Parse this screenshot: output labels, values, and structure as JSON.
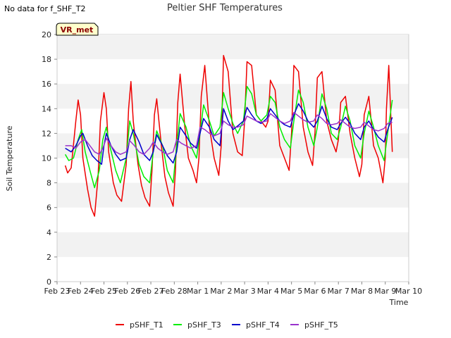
{
  "note": "No data for f_SHF_T2",
  "badge": "VR_met",
  "chart_data": {
    "type": "line",
    "title": "Peltier SHF Temperatures",
    "xlabel": "Time",
    "ylabel": "Soil Temperature",
    "ylim": [
      0,
      20
    ],
    "yticks": [
      0,
      2,
      4,
      6,
      8,
      10,
      12,
      14,
      16,
      18,
      20
    ],
    "xlim": [
      0,
      15
    ],
    "xtick_labels": [
      "Feb 23",
      "Feb 24",
      "Feb 25",
      "Feb 26",
      "Feb 27",
      "Feb 28",
      "Mar 1",
      "Mar 2",
      "Mar 3",
      "Mar 4",
      "Mar 5",
      "Mar 6",
      "Mar 7",
      "Mar 8",
      "Mar 9",
      "Mar 10"
    ],
    "x_values_note": "x in days since Feb 23",
    "grid": true,
    "legend_position": "bottom",
    "series": [
      {
        "name": "pSHF_T1",
        "color": "#ee0000",
        "x": [
          0.35,
          0.45,
          0.6,
          0.8,
          0.9,
          1.0,
          1.1,
          1.3,
          1.45,
          1.6,
          1.75,
          1.85,
          2.0,
          2.1,
          2.2,
          2.4,
          2.55,
          2.75,
          2.95,
          3.05,
          3.15,
          3.25,
          3.45,
          3.6,
          3.75,
          3.95,
          4.05,
          4.15,
          4.25,
          4.45,
          4.6,
          4.75,
          4.95,
          5.05,
          5.15,
          5.25,
          5.45,
          5.6,
          5.8,
          5.95,
          6.05,
          6.15,
          6.3,
          6.5,
          6.7,
          6.9,
          7.0,
          7.1,
          7.3,
          7.5,
          7.7,
          7.9,
          8.0,
          8.1,
          8.3,
          8.5,
          8.7,
          8.9,
          9.0,
          9.1,
          9.3,
          9.5,
          9.7,
          9.9,
          10.0,
          10.1,
          10.3,
          10.5,
          10.7,
          10.9,
          11.0,
          11.1,
          11.3,
          11.5,
          11.7,
          11.9,
          12.0,
          12.1,
          12.3,
          12.5,
          12.7,
          12.9,
          13.0,
          13.1,
          13.3,
          13.5,
          13.7,
          13.9,
          14.0,
          14.05,
          14.15,
          14.3
        ],
        "y": [
          9.4,
          8.8,
          9.2,
          13.0,
          14.7,
          13.5,
          10.0,
          7.5,
          6.0,
          5.3,
          8.5,
          13.0,
          15.3,
          14.0,
          10.5,
          8.0,
          7.0,
          6.5,
          9.5,
          14.0,
          16.2,
          13.0,
          9.5,
          7.8,
          6.8,
          6.1,
          9.0,
          13.5,
          14.8,
          11.0,
          8.5,
          7.2,
          6.1,
          9.0,
          14.5,
          16.8,
          12.5,
          10.0,
          9.0,
          8.0,
          10.0,
          15.0,
          17.5,
          12.5,
          10.0,
          8.6,
          11.0,
          18.3,
          17.0,
          12.0,
          10.5,
          10.2,
          13.0,
          17.8,
          17.5,
          13.5,
          13.0,
          12.5,
          13.0,
          16.3,
          15.5,
          11.0,
          10.0,
          9.0,
          12.0,
          17.5,
          17.0,
          12.5,
          10.5,
          9.4,
          12.0,
          16.5,
          17.0,
          13.0,
          11.5,
          10.5,
          11.5,
          14.5,
          15.0,
          12.0,
          10.0,
          8.5,
          9.5,
          13.5,
          15.0,
          11.0,
          10.0,
          8.0,
          10.0,
          14.0,
          17.5,
          10.5
        ]
      },
      {
        "name": "pSHF_T3",
        "color": "#00ee00",
        "x": [
          0.35,
          0.5,
          0.7,
          0.9,
          1.05,
          1.2,
          1.4,
          1.6,
          1.8,
          1.95,
          2.1,
          2.25,
          2.5,
          2.7,
          2.95,
          3.1,
          3.25,
          3.5,
          3.7,
          3.95,
          4.1,
          4.25,
          4.5,
          4.7,
          4.95,
          5.1,
          5.25,
          5.5,
          5.7,
          5.95,
          6.1,
          6.25,
          6.5,
          6.7,
          6.95,
          7.1,
          7.3,
          7.5,
          7.7,
          7.95,
          8.1,
          8.3,
          8.5,
          8.7,
          8.95,
          9.1,
          9.3,
          9.5,
          9.7,
          9.95,
          10.1,
          10.3,
          10.5,
          10.7,
          10.95,
          11.1,
          11.3,
          11.5,
          11.7,
          11.95,
          12.1,
          12.3,
          12.5,
          12.7,
          12.95,
          13.1,
          13.3,
          13.5,
          13.7,
          13.95,
          14.1,
          14.3
        ],
        "y": [
          10.3,
          9.8,
          10.0,
          11.5,
          12.3,
          10.5,
          9.0,
          7.6,
          9.0,
          11.5,
          12.5,
          11.0,
          9.0,
          8.0,
          10.0,
          13.0,
          12.0,
          9.5,
          8.5,
          8.0,
          10.5,
          12.2,
          11.0,
          9.0,
          8.0,
          11.0,
          13.6,
          12.5,
          11.0,
          10.0,
          12.0,
          14.3,
          13.0,
          11.8,
          12.5,
          15.3,
          14.0,
          12.8,
          12.0,
          13.0,
          15.8,
          15.2,
          13.5,
          13.0,
          13.5,
          15.0,
          14.5,
          12.5,
          11.5,
          10.8,
          13.0,
          15.5,
          14.5,
          12.5,
          11.0,
          12.5,
          15.2,
          14.0,
          12.0,
          11.5,
          12.5,
          14.2,
          13.0,
          11.0,
          10.0,
          12.0,
          13.8,
          12.5,
          11.0,
          9.8,
          12.0,
          14.7
        ]
      },
      {
        "name": "pSHF_T4",
        "color": "#0000cc",
        "x": [
          0.35,
          0.6,
          0.8,
          1.0,
          1.1,
          1.3,
          1.5,
          1.7,
          1.9,
          2.0,
          2.1,
          2.3,
          2.5,
          2.7,
          2.95,
          3.1,
          3.25,
          3.5,
          3.7,
          3.95,
          4.1,
          4.25,
          4.5,
          4.7,
          4.95,
          5.1,
          5.25,
          5.5,
          5.7,
          5.95,
          6.1,
          6.25,
          6.5,
          6.7,
          6.95,
          7.1,
          7.3,
          7.5,
          7.7,
          7.95,
          8.1,
          8.3,
          8.5,
          8.7,
          8.95,
          9.1,
          9.3,
          9.5,
          9.7,
          9.95,
          10.1,
          10.3,
          10.5,
          10.7,
          10.95,
          11.1,
          11.3,
          11.5,
          11.7,
          11.95,
          12.1,
          12.3,
          12.5,
          12.7,
          12.95,
          13.1,
          13.3,
          13.5,
          13.7,
          13.95,
          14.1,
          14.3
        ],
        "y": [
          10.8,
          10.5,
          11.0,
          11.8,
          12.0,
          11.0,
          10.2,
          9.8,
          9.5,
          11.0,
          12.0,
          11.0,
          10.3,
          9.8,
          10.0,
          11.5,
          12.3,
          11.3,
          10.3,
          9.8,
          10.5,
          11.9,
          11.0,
          10.2,
          9.6,
          10.5,
          12.5,
          11.8,
          11.2,
          10.8,
          12.0,
          13.2,
          12.5,
          11.5,
          11.0,
          14.0,
          13.0,
          12.3,
          12.6,
          13.0,
          14.1,
          13.5,
          13.0,
          12.8,
          13.2,
          14.0,
          13.5,
          13.0,
          12.7,
          12.5,
          13.5,
          14.4,
          13.8,
          13.0,
          12.5,
          13.0,
          14.2,
          13.2,
          12.5,
          12.3,
          12.8,
          13.3,
          12.8,
          12.0,
          11.5,
          12.5,
          13.0,
          12.3,
          11.7,
          11.3,
          12.3,
          13.3
        ]
      },
      {
        "name": "pSHF_T5",
        "color": "#9933cc",
        "x": [
          0.35,
          0.6,
          0.8,
          1.0,
          1.2,
          1.4,
          1.6,
          1.8,
          1.95,
          2.1,
          2.3,
          2.5,
          2.7,
          2.95,
          3.1,
          3.3,
          3.5,
          3.7,
          3.95,
          4.1,
          4.3,
          4.5,
          4.7,
          4.95,
          5.1,
          5.3,
          5.5,
          5.7,
          5.95,
          6.1,
          6.3,
          6.5,
          6.7,
          6.95,
          7.1,
          7.3,
          7.5,
          7.7,
          7.95,
          8.1,
          8.3,
          8.5,
          8.7,
          8.95,
          9.1,
          9.3,
          9.5,
          9.7,
          9.95,
          10.1,
          10.3,
          10.5,
          10.7,
          10.95,
          11.1,
          11.3,
          11.5,
          11.7,
          11.95,
          12.1,
          12.3,
          12.5,
          12.7,
          12.95,
          13.1,
          13.3,
          13.5,
          13.7,
          13.95,
          14.1,
          14.3
        ],
        "y": [
          11.0,
          11.0,
          10.8,
          11.3,
          11.5,
          11.0,
          10.5,
          10.3,
          10.8,
          11.6,
          11.0,
          10.5,
          10.3,
          10.5,
          11.4,
          11.0,
          10.5,
          10.3,
          10.8,
          11.3,
          10.8,
          10.5,
          10.3,
          10.5,
          11.5,
          11.2,
          11.0,
          10.8,
          11.0,
          12.5,
          12.3,
          12.0,
          11.8,
          12.0,
          13.0,
          12.7,
          12.5,
          12.5,
          12.7,
          13.4,
          13.2,
          13.0,
          12.9,
          13.0,
          13.6,
          13.3,
          13.0,
          12.8,
          13.0,
          13.7,
          13.4,
          13.1,
          12.9,
          13.0,
          13.5,
          13.2,
          12.8,
          12.7,
          12.8,
          13.1,
          12.8,
          12.5,
          12.4,
          12.5,
          12.9,
          12.6,
          12.3,
          12.2,
          12.4,
          12.8,
          12.9
        ]
      }
    ]
  }
}
